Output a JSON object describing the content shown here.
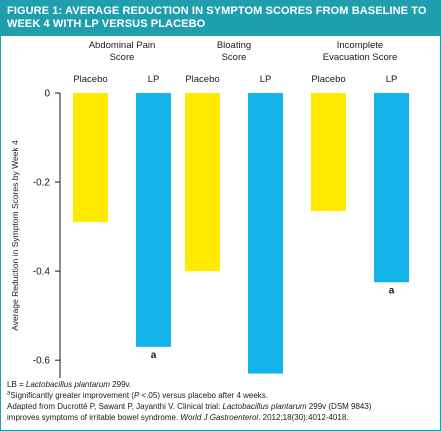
{
  "header": {
    "title": "FIGURE 1: AVERAGE REDUCTION IN SYMPTOM SCORES FROM BASELINE TO WEEK 4 WITH LP VERSUS PLACEBO"
  },
  "colors": {
    "header_bg": "#1f9fae",
    "placebo": "#ffea00",
    "lp": "#12b3e8"
  },
  "chart_data": {
    "type": "bar",
    "title": "",
    "ylabel": "Average Reduction in Symptom Scores by Week 4",
    "ylim": [
      -0.64,
      0
    ],
    "yticks": [
      0,
      -0.2,
      -0.4,
      -0.6
    ],
    "ytick_labels": [
      "0",
      "-0.2",
      "-0.4",
      "-0.6"
    ],
    "legend": "none",
    "grid": false,
    "groups": [
      {
        "title_lines": [
          "Abdominal Pain",
          "Score"
        ],
        "bars": [
          {
            "label": "Placebo",
            "series": "placebo",
            "value": -0.29,
            "annotation": ""
          },
          {
            "label": "LP",
            "series": "lp",
            "value": -0.57,
            "annotation": "a"
          }
        ]
      },
      {
        "title_lines": [
          "Bloating",
          "Score"
        ],
        "bars": [
          {
            "label": "Placebo",
            "series": "placebo",
            "value": -0.4,
            "annotation": ""
          },
          {
            "label": "LP",
            "series": "lp",
            "value": -0.63,
            "annotation": "a"
          }
        ]
      },
      {
        "title_lines": [
          "Incomplete",
          "Evacuation Score"
        ],
        "bars": [
          {
            "label": "Placebo",
            "series": "placebo",
            "value": -0.265,
            "annotation": ""
          },
          {
            "label": "LP",
            "series": "lp",
            "value": -0.425,
            "annotation": "a"
          }
        ]
      }
    ]
  },
  "footer": {
    "lb_prefix": "LB = ",
    "lb_species": "Lactobacillus plantarum",
    "lb_suffix": " 299v.",
    "sig_mark": "a",
    "sig_text_1": "Significantly greater improvement (",
    "sig_p": "P",
    "sig_text_2": " <.05) versus placebo after 4 weeks.",
    "adapted_1": "Adapted from Ducrotté P, Sawant P, Jayanthi V. Clinical trial: ",
    "adapted_species": "Lactobacillus plantarum",
    "adapted_2": " 299v (DSM 9843)",
    "adapted_3": "improves symptoms of irritable bowel syndrome. ",
    "adapted_journal": "World J Gastroenterol",
    "adapted_4": ". 2012;18(30):4012-4018."
  }
}
